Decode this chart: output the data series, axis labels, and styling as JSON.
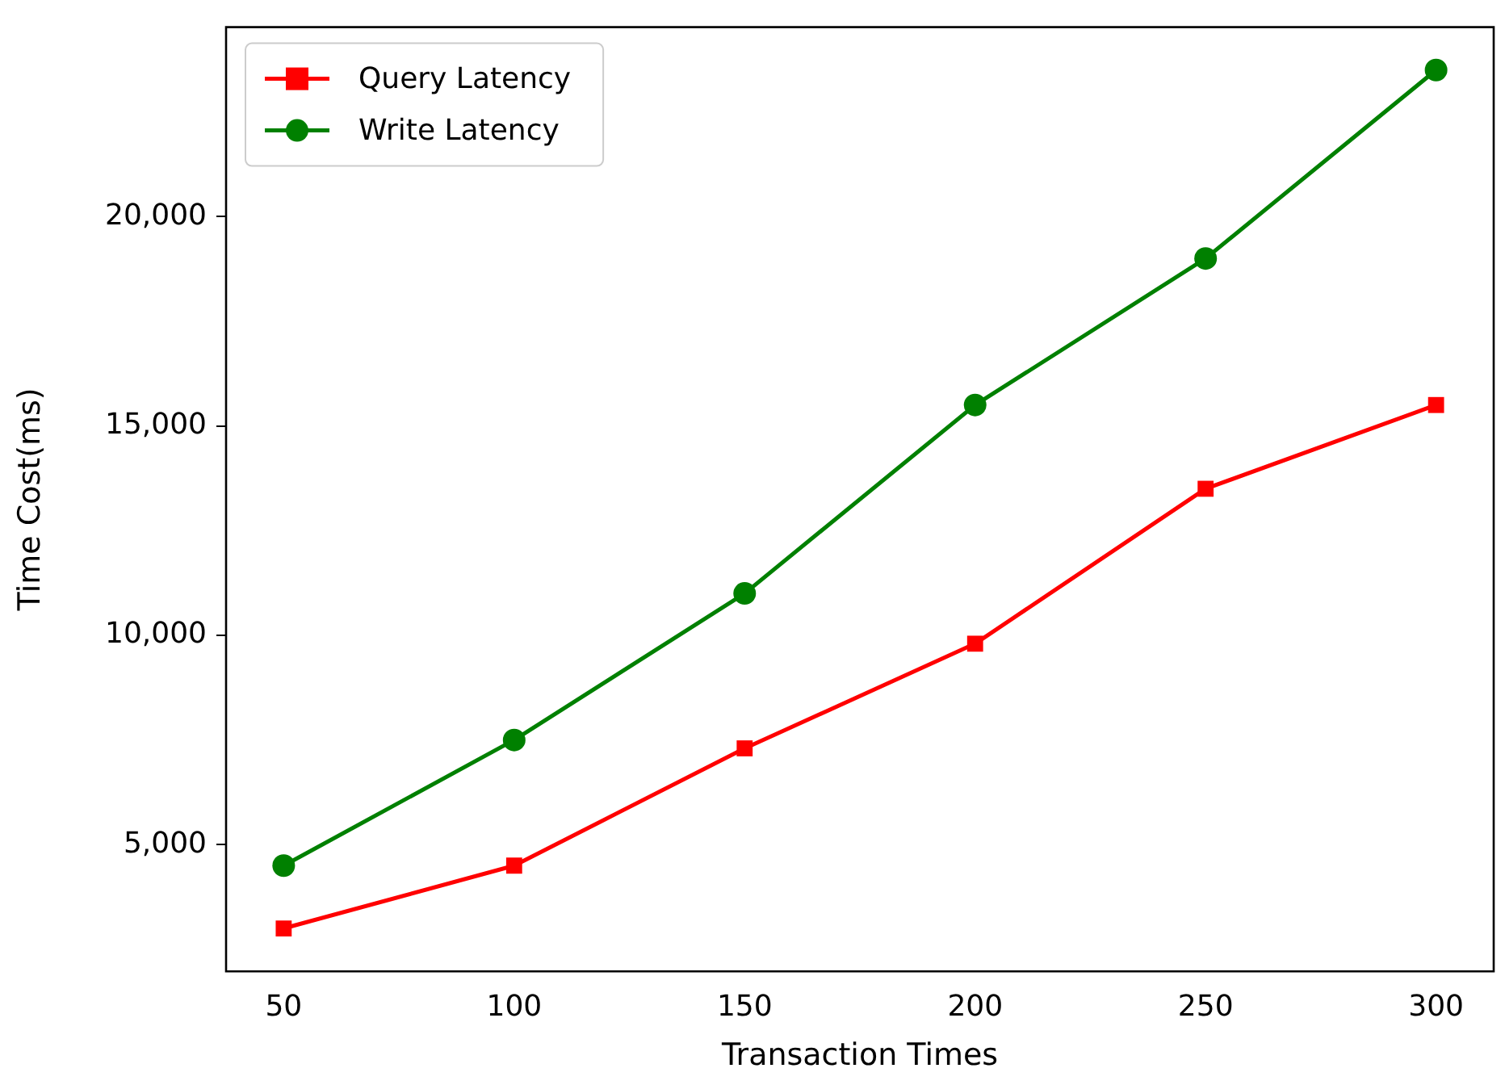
{
  "chart_data": {
    "type": "line",
    "xlabel": "Transaction Times",
    "ylabel": "Time Cost(ms)",
    "x": [
      50,
      100,
      150,
      200,
      250,
      300
    ],
    "series": [
      {
        "name": "Query Latency",
        "color": "#ff0000",
        "marker": "square",
        "values": [
          3000,
          4500,
          7300,
          9800,
          13500,
          15500
        ]
      },
      {
        "name": "Write Latency",
        "color": "#008000",
        "marker": "circle",
        "values": [
          4500,
          7500,
          11000,
          15500,
          19000,
          23500
        ]
      }
    ],
    "xlim": [
      37.5,
      312.5
    ],
    "xticks": [
      50,
      100,
      150,
      200,
      250,
      300
    ],
    "ylim": [
      1975,
      24525
    ],
    "yticks": [
      {
        "value": 5000,
        "label": "5,000"
      },
      {
        "value": 10000,
        "label": "10,000"
      },
      {
        "value": 15000,
        "label": "15,000"
      },
      {
        "value": 20000,
        "label": "20,000"
      }
    ],
    "grid": false,
    "legend": "top left",
    "line_style": "solid"
  }
}
